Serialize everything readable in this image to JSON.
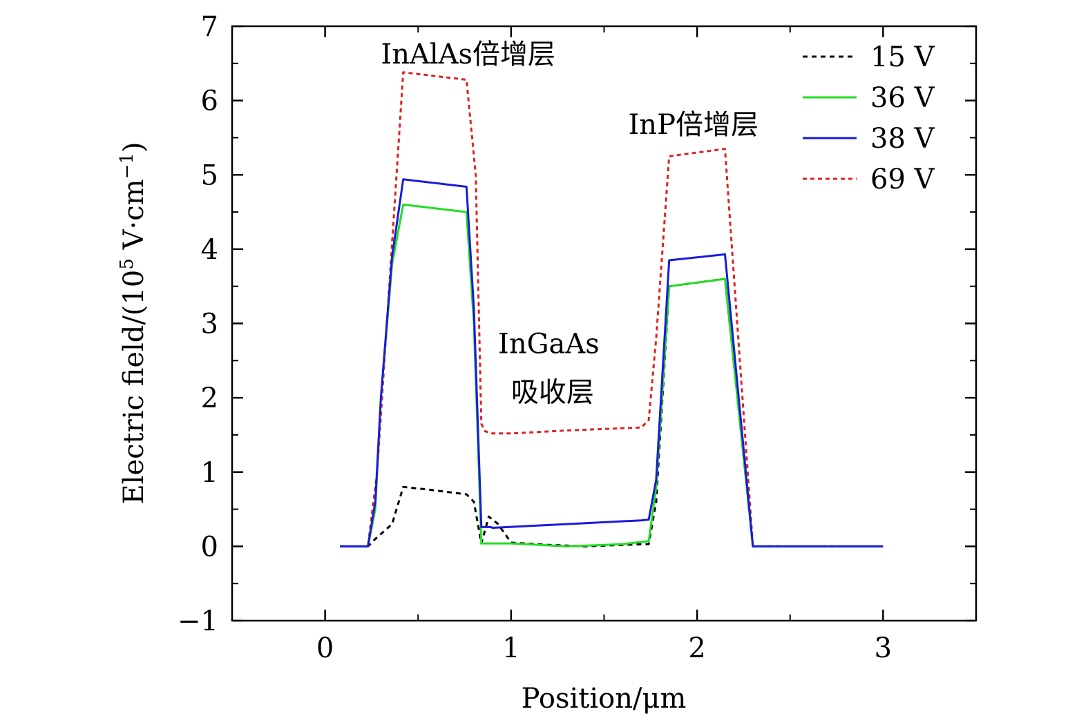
{
  "chart_data": {
    "type": "line",
    "title": "",
    "xlabel": "Position/μm",
    "ylabel": "Electric field/(10",
    "ylabel_sup": "5",
    "ylabel_tail": " V·cm",
    "ylabel_tail_sup": "−1",
    "ylabel_close": ")",
    "xlim": [
      -0.5,
      3.5
    ],
    "ylim": [
      -1,
      7
    ],
    "xticks": [
      0,
      1,
      2,
      3
    ],
    "xtick_labels": [
      "0",
      "1",
      "2",
      "3"
    ],
    "yticks": [
      -1,
      0,
      1,
      2,
      3,
      4,
      5,
      6,
      7
    ],
    "ytick_labels": [
      "−1",
      "0",
      "1",
      "2",
      "3",
      "4",
      "5",
      "6",
      "7"
    ],
    "grid": false,
    "legend_position": "top-right",
    "series": [
      {
        "name": "15 V",
        "color": "#000000",
        "dash": "dashed",
        "x": [
          0.08,
          0.23,
          0.27,
          0.36,
          0.42,
          0.57,
          0.76,
          0.8,
          0.84,
          0.88,
          0.93,
          1.0,
          1.2,
          1.4,
          1.6,
          1.74,
          1.78,
          1.85,
          2.0,
          2.15,
          2.3,
          2.6,
          3.0
        ],
        "y": [
          0.0,
          0.0,
          0.1,
          0.3,
          0.8,
          0.76,
          0.7,
          0.6,
          0.04,
          0.4,
          0.3,
          0.05,
          0.02,
          0.0,
          0.02,
          0.03,
          0.6,
          3.5,
          3.55,
          3.6,
          0.0,
          0.0,
          0.0
        ]
      },
      {
        "name": "36 V",
        "color": "#22dd22",
        "dash": "solid",
        "x": [
          0.08,
          0.23,
          0.27,
          0.3,
          0.36,
          0.42,
          0.76,
          0.8,
          0.84,
          1.0,
          1.3,
          1.6,
          1.74,
          1.78,
          1.85,
          2.15,
          2.3,
          2.6,
          3.0
        ],
        "y": [
          0.0,
          0.0,
          0.5,
          2.0,
          3.8,
          4.6,
          4.5,
          3.0,
          0.04,
          0.04,
          0.0,
          0.03,
          0.07,
          0.8,
          3.5,
          3.6,
          0.0,
          0.0,
          0.0
        ]
      },
      {
        "name": "38 V",
        "color": "#1a1adc",
        "dash": "solid",
        "x": [
          0.08,
          0.23,
          0.27,
          0.3,
          0.36,
          0.42,
          0.76,
          0.8,
          0.84,
          0.85,
          0.89,
          0.9,
          1.3,
          1.7,
          1.74,
          1.78,
          1.85,
          2.15,
          2.3,
          2.6,
          3.0
        ],
        "y": [
          0.0,
          0.0,
          0.6,
          2.0,
          3.9,
          4.94,
          4.84,
          3.2,
          0.26,
          0.26,
          0.26,
          0.25,
          0.3,
          0.35,
          0.36,
          0.9,
          3.85,
          3.93,
          0.0,
          0.0,
          0.0
        ]
      },
      {
        "name": "69 V",
        "color": "#e02020",
        "dash": "dotted",
        "x": [
          0.08,
          0.23,
          0.28,
          0.42,
          0.76,
          0.81,
          0.84,
          0.86,
          0.9,
          1.0,
          1.3,
          1.7,
          1.74,
          1.78,
          1.85,
          2.15,
          2.3,
          2.6,
          3.0
        ],
        "y": [
          0.0,
          0.0,
          1.0,
          6.38,
          6.28,
          5.0,
          1.65,
          1.55,
          1.52,
          1.52,
          1.56,
          1.6,
          1.7,
          2.8,
          5.25,
          5.35,
          0.0,
          0.0,
          0.0
        ]
      }
    ],
    "annotations": [
      {
        "text": "InAlAs倍增层",
        "x": 0.3,
        "y": 6.5
      },
      {
        "text": "InP倍增层",
        "x": 1.63,
        "y": 5.55
      },
      {
        "text": "InGaAs",
        "x": 0.93,
        "y": 2.6
      },
      {
        "text": "吸收层",
        "x": 1.0,
        "y": 1.95
      }
    ]
  }
}
